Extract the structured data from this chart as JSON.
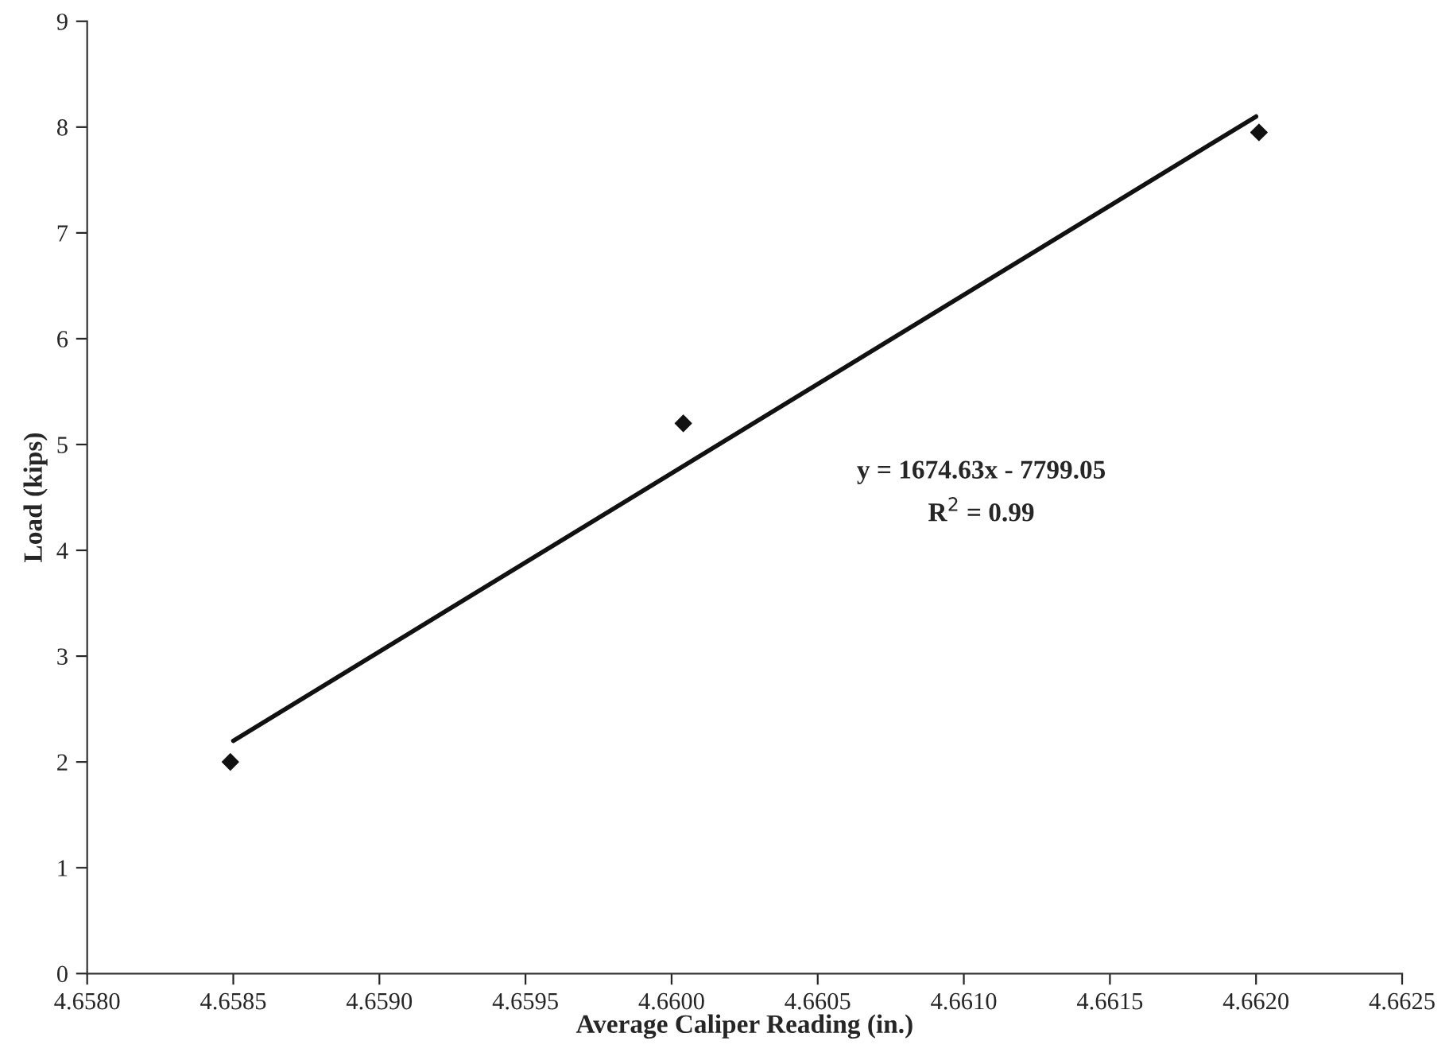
{
  "chart_data": {
    "type": "scatter",
    "xlabel": "Average Caliper Reading (in.)",
    "ylabel": "Load (kips)",
    "series": [
      {
        "color": "#111111",
        "marker": "diamond",
        "x": [
          4.65849,
          4.66004,
          4.66201
        ],
        "values": [
          2.0,
          5.2,
          7.95
        ]
      },
      {
        "type": "line",
        "marker": "none",
        "color": "#111111",
        "x": [
          4.6585,
          4.662
        ],
        "values": [
          2.2,
          8.1
        ]
      }
    ],
    "xlim": [
      4.658,
      4.6625
    ],
    "ylim": [
      0,
      9
    ],
    "xticks": [
      {
        "value": 4.658,
        "label": "4.6580"
      },
      {
        "value": 4.6585,
        "label": "4.6585"
      },
      {
        "value": 4.659,
        "label": "4.6590"
      },
      {
        "value": 4.6595,
        "label": "4.6595"
      },
      {
        "value": 4.66,
        "label": "4.6600"
      },
      {
        "value": 4.6605,
        "label": "4.6605"
      },
      {
        "value": 4.661,
        "label": "4.6610"
      },
      {
        "value": 4.6615,
        "label": "4.6615"
      },
      {
        "value": 4.662,
        "label": "4.6620"
      },
      {
        "value": 4.6625,
        "label": "4.6625"
      }
    ],
    "yticks": [
      0,
      1,
      2,
      3,
      4,
      5,
      6,
      7,
      8,
      9
    ],
    "annotations": [
      "y = 1674.63x - 7799.05",
      "R$^{2}$ = 0.99"
    ],
    "grid": false,
    "legend": false
  }
}
